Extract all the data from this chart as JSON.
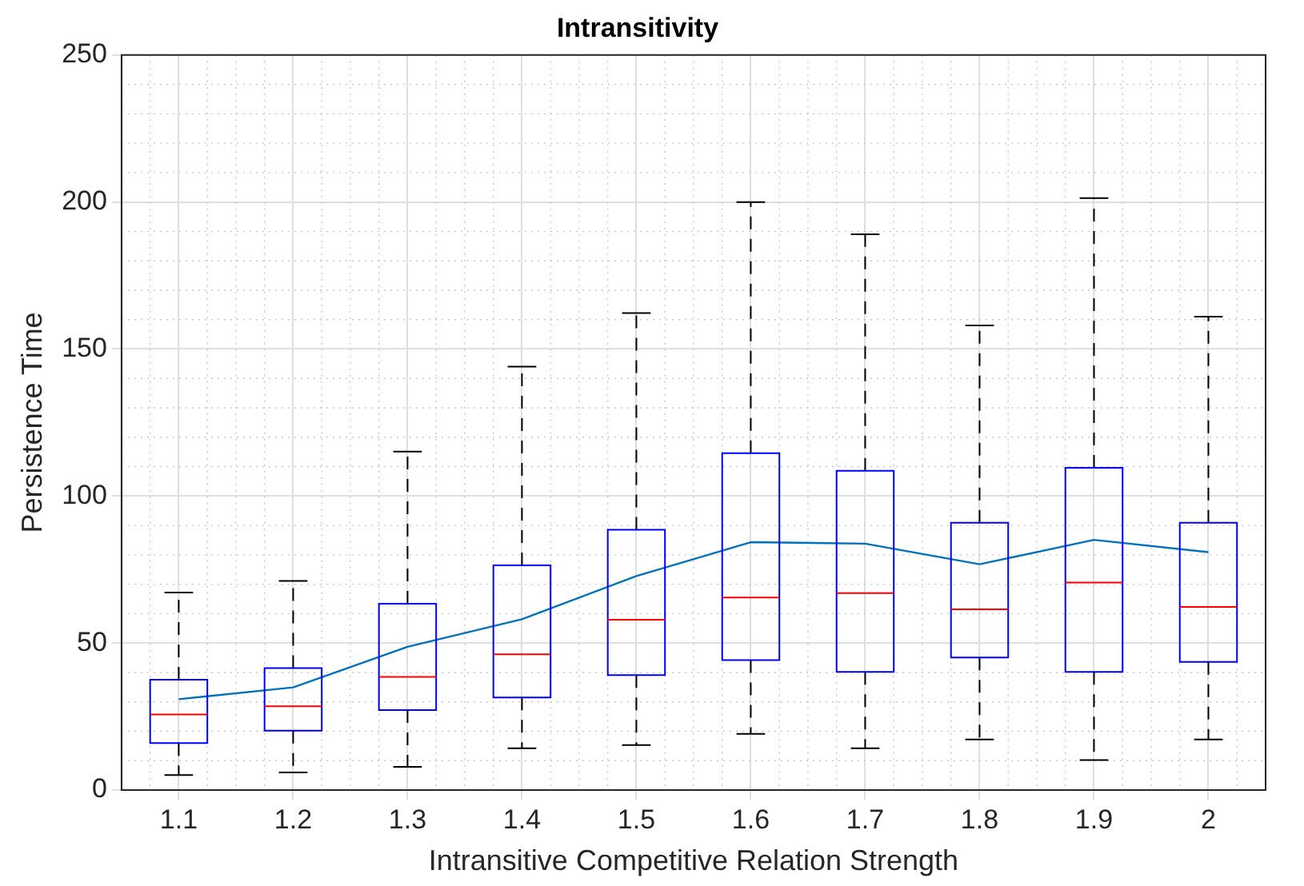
{
  "chart_data": {
    "type": "box",
    "title": "Intransitivity",
    "xlabel": "Intransitive Competitive Relation Strength",
    "ylabel": "Persistence Time",
    "categories": [
      "1.1",
      "1.2",
      "1.3",
      "1.4",
      "1.5",
      "1.6",
      "1.7",
      "1.8",
      "1.9",
      "2"
    ],
    "ylim": [
      0,
      250
    ],
    "yticks": [
      0,
      50,
      100,
      150,
      200,
      250
    ],
    "grid": true,
    "legend": false,
    "series": [
      {
        "color": "#0000ff",
        "boxes": [
          {
            "low": 5.1,
            "q1": 16,
            "median": 25.7,
            "q3": 37.5,
            "high": 67.2
          },
          {
            "low": 6,
            "q1": 20.2,
            "median": 28.5,
            "q3": 41.5,
            "high": 71.1
          },
          {
            "low": 7.9,
            "q1": 27.2,
            "median": 38.5,
            "q3": 63.4,
            "high": 115.1
          },
          {
            "low": 14.2,
            "q1": 31.5,
            "median": 46.2,
            "q3": 76.4,
            "high": 144
          },
          {
            "low": 15.3,
            "q1": 39.1,
            "median": 57.9,
            "q3": 88.5,
            "high": 162.2
          },
          {
            "low": 19.1,
            "q1": 44.2,
            "median": 65.5,
            "q3": 114.6,
            "high": 200
          },
          {
            "low": 14.2,
            "q1": 40.2,
            "median": 67,
            "q3": 108.6,
            "high": 189
          },
          {
            "low": 17.2,
            "q1": 45.1,
            "median": 61.5,
            "q3": 90.9,
            "high": 158
          },
          {
            "low": 10.2,
            "q1": 40.2,
            "median": 70.6,
            "q3": 109.6,
            "high": 201.3
          },
          {
            "low": 17.2,
            "q1": 43.6,
            "median": 62.3,
            "q3": 90.9,
            "high": 161
          }
        ]
      },
      {
        "type": "line",
        "color": "#0072bd",
        "marker": "none",
        "values": [
          30.9,
          34.9,
          48.7,
          58.1,
          72.8,
          84.3,
          83.8,
          76.8,
          85.1,
          80.9
        ]
      }
    ]
  }
}
